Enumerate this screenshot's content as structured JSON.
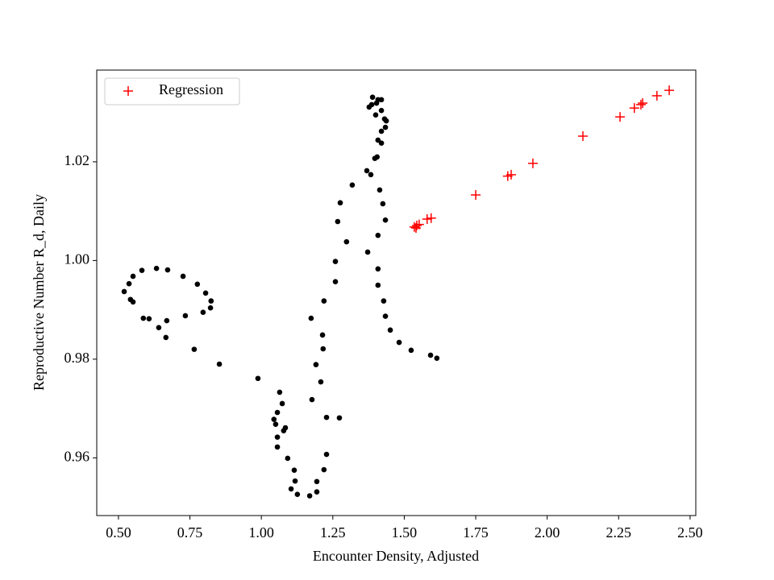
{
  "chart_data": {
    "type": "scatter",
    "xlabel": "Encounter Density, Adjusted",
    "ylabel": "Reproductive Number R_d, Daily",
    "xlim": [
      0.424,
      2.52
    ],
    "ylim": [
      0.9483,
      1.0386
    ],
    "xticks": [
      {
        "value": 0.5,
        "label": "0.50"
      },
      {
        "value": 0.75,
        "label": "0.75"
      },
      {
        "value": 1.0,
        "label": "1.00"
      },
      {
        "value": 1.25,
        "label": "1.25"
      },
      {
        "value": 1.5,
        "label": "1.50"
      },
      {
        "value": 1.75,
        "label": "1.75"
      },
      {
        "value": 2.0,
        "label": "2.00"
      },
      {
        "value": 2.25,
        "label": "2.25"
      },
      {
        "value": 2.5,
        "label": "2.50"
      }
    ],
    "yticks": [
      0.96,
      0.98,
      {
        "value": 1.0,
        "label": "1.00"
      },
      1.02
    ],
    "grid": false,
    "legend": "upper left",
    "series": [
      {
        "color": "#000000",
        "marker": "dot",
        "x": [
          0.52,
          0.537,
          0.551,
          0.582,
          0.633,
          0.672,
          0.726,
          0.776,
          0.805,
          0.824,
          0.822,
          0.796,
          0.734,
          0.669,
          0.641,
          0.666,
          0.607,
          0.587,
          0.551,
          0.542,
          0.765,
          0.853,
          0.988,
          1.064,
          1.073,
          1.056,
          1.044,
          1.05,
          1.056,
          1.056,
          1.078,
          1.084,
          1.092,
          1.115,
          1.104,
          1.118,
          1.126,
          1.169,
          1.194,
          1.194,
          1.219,
          1.228,
          1.228,
          1.177,
          1.191,
          1.208,
          1.216,
          1.214,
          1.219,
          1.174,
          1.259,
          1.259,
          1.298,
          1.267,
          1.276,
          1.318,
          1.369,
          1.383,
          1.397,
          1.405,
          1.408,
          1.42,
          1.434,
          1.42,
          1.431,
          1.437,
          1.42,
          1.4,
          1.403,
          1.42,
          1.389,
          1.377,
          1.386,
          1.408,
          1.414,
          1.425,
          1.434,
          1.408,
          1.408,
          1.408,
          1.428,
          1.434,
          1.451,
          1.482,
          1.524,
          1.592,
          1.614,
          1.273,
          1.372
        ],
        "values": [
          0.9937,
          0.9953,
          0.9968,
          0.998,
          0.9984,
          0.9981,
          0.9968,
          0.9952,
          0.9934,
          0.9918,
          0.9904,
          0.9895,
          0.9888,
          0.9878,
          0.9864,
          0.9844,
          0.9882,
          0.9883,
          0.9916,
          0.9921,
          0.982,
          0.979,
          0.9761,
          0.9733,
          0.971,
          0.9692,
          0.9678,
          0.9668,
          0.9642,
          0.9622,
          0.9655,
          0.9661,
          0.9599,
          0.9575,
          0.9537,
          0.9553,
          0.9526,
          0.9523,
          0.9531,
          0.9552,
          0.9576,
          0.9607,
          0.9682,
          0.9718,
          0.9789,
          0.9754,
          0.9821,
          0.9849,
          0.9918,
          0.9883,
          0.9957,
          0.9998,
          1.0038,
          1.0079,
          1.0117,
          1.0153,
          1.0182,
          1.0174,
          1.0207,
          1.021,
          1.0244,
          1.0262,
          1.027,
          1.0238,
          1.0287,
          1.0283,
          1.0304,
          1.0295,
          1.0319,
          1.0326,
          1.0331,
          1.0311,
          1.0316,
          1.0326,
          1.0143,
          1.0115,
          1.0082,
          1.0051,
          0.9983,
          0.995,
          0.9918,
          0.9887,
          0.9859,
          0.9834,
          0.9818,
          0.9808,
          0.9802,
          0.9681,
          1.0017
        ]
      },
      {
        "name": "Regression",
        "color": "#ff0000",
        "marker": "plus",
        "x": [
          1.535,
          1.544,
          1.552,
          1.541,
          1.58,
          1.594,
          1.75,
          1.862,
          1.874,
          1.95,
          2.125,
          2.255,
          2.305,
          2.328,
          2.334,
          2.384,
          2.427
        ],
        "values": [
          1.0068,
          1.0071,
          1.0073,
          1.0066,
          1.0084,
          1.0086,
          1.0133,
          1.0171,
          1.0174,
          1.0197,
          1.0252,
          1.0291,
          1.0309,
          1.0316,
          1.0319,
          1.0334,
          1.0345
        ]
      }
    ]
  }
}
